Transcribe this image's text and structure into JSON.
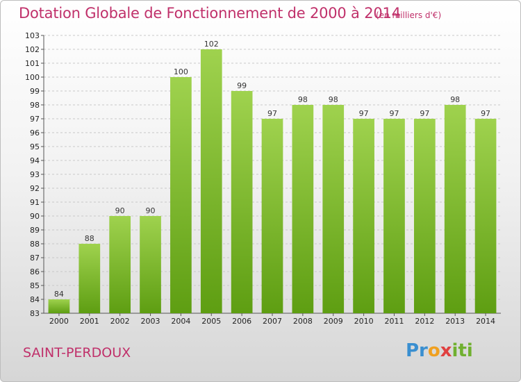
{
  "title": "Dotation Globale de Fonctionnement de 2000 à 2014",
  "subtitle": "(en milliers d'€)",
  "commune": "SAINT-PERDOUX",
  "logo": {
    "p1": "Pr",
    "p2": "o",
    "p3": "x",
    "p4": "iti"
  },
  "colors": {
    "bar_top": "#9fd24e",
    "bar_bottom": "#5e9e12",
    "title": "#c0306a"
  },
  "chart_data": {
    "type": "bar",
    "categories": [
      "2000",
      "2001",
      "2002",
      "2003",
      "2004",
      "2005",
      "2006",
      "2007",
      "2008",
      "2009",
      "2010",
      "2011",
      "2012",
      "2013",
      "2014"
    ],
    "values": [
      84,
      88,
      90,
      90,
      100,
      102,
      99,
      97,
      98,
      98,
      97,
      97,
      97,
      98,
      97
    ],
    "ylim": [
      83,
      103
    ],
    "yticks": [
      83,
      84,
      85,
      86,
      87,
      88,
      89,
      90,
      91,
      92,
      93,
      94,
      95,
      96,
      97,
      98,
      99,
      100,
      101,
      102,
      103
    ],
    "grid": true,
    "xlabel": "",
    "ylabel": ""
  }
}
